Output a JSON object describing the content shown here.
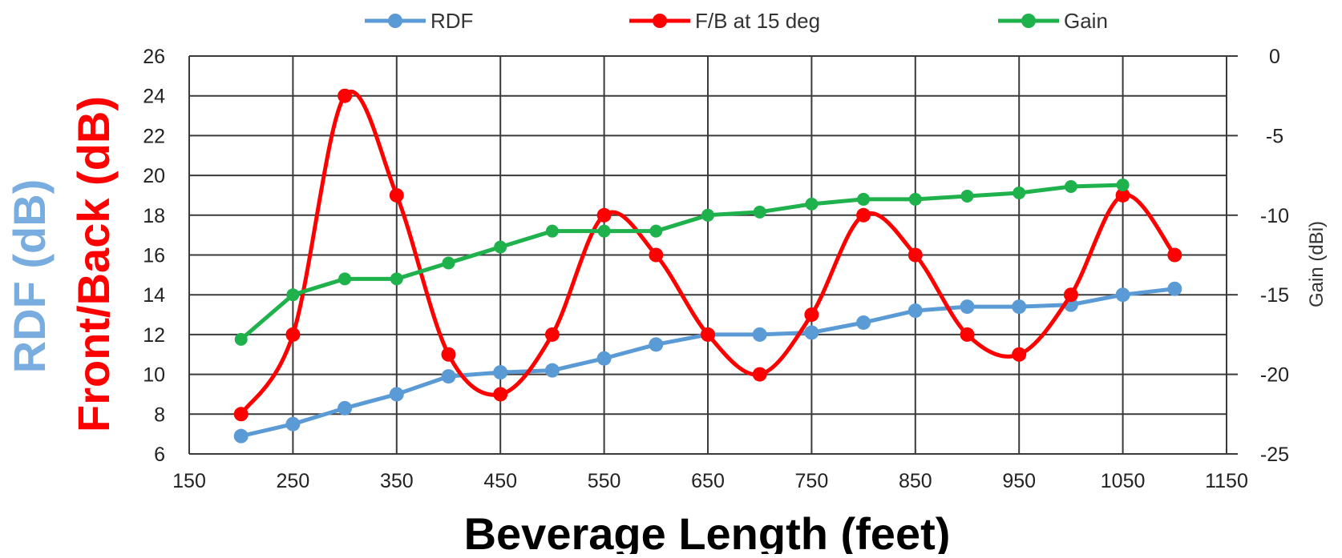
{
  "chart_data": {
    "type": "line",
    "xlabel": "Beverage Length (feet)",
    "ylabel_rdf": "RDF (dB)",
    "ylabel_fb": "Front/Back (dB)",
    "y2label": "Gain (dBi)",
    "xlim": [
      150,
      1150
    ],
    "ylim": [
      6,
      26
    ],
    "y2lim": [
      -25,
      0
    ],
    "x_ticks": [
      "150",
      "250",
      "350",
      "450",
      "550",
      "650",
      "750",
      "850",
      "950",
      "1050",
      "1150"
    ],
    "y_ticks": [
      "6",
      "8",
      "10",
      "12",
      "14",
      "16",
      "18",
      "20",
      "22",
      "24",
      "26"
    ],
    "y2_ticks": [
      "-25",
      "-20",
      "-15",
      "-10",
      "-5",
      "0"
    ],
    "grid": true,
    "legend_position": "top",
    "series": [
      {
        "name": "RDF",
        "axis": "left",
        "color": "#5b9bd5",
        "smooth": false,
        "x": [
          200,
          250,
          300,
          350,
          400,
          450,
          500,
          550,
          600,
          650,
          700,
          750,
          800,
          850,
          900,
          950,
          1000,
          1050,
          1100
        ],
        "values": [
          6.9,
          7.5,
          8.3,
          9.0,
          9.9,
          10.1,
          10.2,
          10.8,
          11.5,
          12.0,
          12.0,
          12.1,
          12.6,
          13.2,
          13.4,
          13.4,
          13.5,
          14.0,
          14.3
        ]
      },
      {
        "name": "F/B at 15 deg",
        "axis": "left",
        "color": "#ff0000",
        "smooth": true,
        "x": [
          200,
          250,
          300,
          350,
          400,
          450,
          500,
          550,
          600,
          650,
          700,
          750,
          800,
          850,
          900,
          950,
          1000,
          1050,
          1100
        ],
        "values": [
          8,
          12,
          24,
          19,
          11,
          9,
          12,
          18,
          16,
          12,
          10,
          13,
          18,
          16,
          12,
          11,
          14,
          19,
          16
        ]
      },
      {
        "name": "Gain",
        "axis": "right",
        "color": "#1fb14c",
        "smooth": false,
        "x": [
          200,
          250,
          300,
          350,
          400,
          450,
          500,
          550,
          600,
          650,
          700,
          750,
          800,
          850,
          900,
          950,
          1000,
          1050
        ],
        "values": [
          -17.8,
          -15.0,
          -14.0,
          -14.0,
          -13.0,
          -12.0,
          -11.0,
          -11.0,
          -11.0,
          -10.0,
          -9.8,
          -9.3,
          -9.0,
          -9.0,
          -8.8,
          -8.6,
          -8.2,
          -8.1
        ]
      }
    ]
  }
}
